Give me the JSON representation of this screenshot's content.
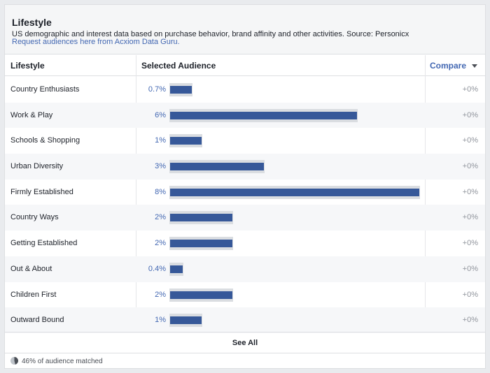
{
  "header": {
    "title": "Lifestyle",
    "description": "US demographic and interest data based on purchase behavior, brand affinity and other activities. Source: Personicx",
    "link": "Request audiences here from Acxiom Data Guru."
  },
  "table": {
    "columns": {
      "lifestyle": "Lifestyle",
      "selected": "Selected Audience",
      "compare": "Compare"
    },
    "rows": [
      {
        "name": "Country Enthusiasts",
        "pct": "0.7%",
        "value": 0.7,
        "compare": "+0%"
      },
      {
        "name": "Work & Play",
        "pct": "6%",
        "value": 6,
        "compare": "+0%"
      },
      {
        "name": "Schools & Shopping",
        "pct": "1%",
        "value": 1,
        "compare": "+0%"
      },
      {
        "name": "Urban Diversity",
        "pct": "3%",
        "value": 3,
        "compare": "+0%"
      },
      {
        "name": "Firmly Established",
        "pct": "8%",
        "value": 8,
        "compare": "+0%"
      },
      {
        "name": "Country Ways",
        "pct": "2%",
        "value": 2,
        "compare": "+0%"
      },
      {
        "name": "Getting Established",
        "pct": "2%",
        "value": 2,
        "compare": "+0%"
      },
      {
        "name": "Out & About",
        "pct": "0.4%",
        "value": 0.4,
        "compare": "+0%"
      },
      {
        "name": "Children First",
        "pct": "2%",
        "value": 2,
        "compare": "+0%"
      },
      {
        "name": "Outward Bound",
        "pct": "1%",
        "value": 1,
        "compare": "+0%"
      }
    ]
  },
  "footer": {
    "see_all": "See All",
    "matched": "46% of audience matched",
    "matched_fraction": 0.46
  },
  "colors": {
    "accent": "#4267b2",
    "bar": "#365899",
    "bar_bg": "#dadde1"
  }
}
